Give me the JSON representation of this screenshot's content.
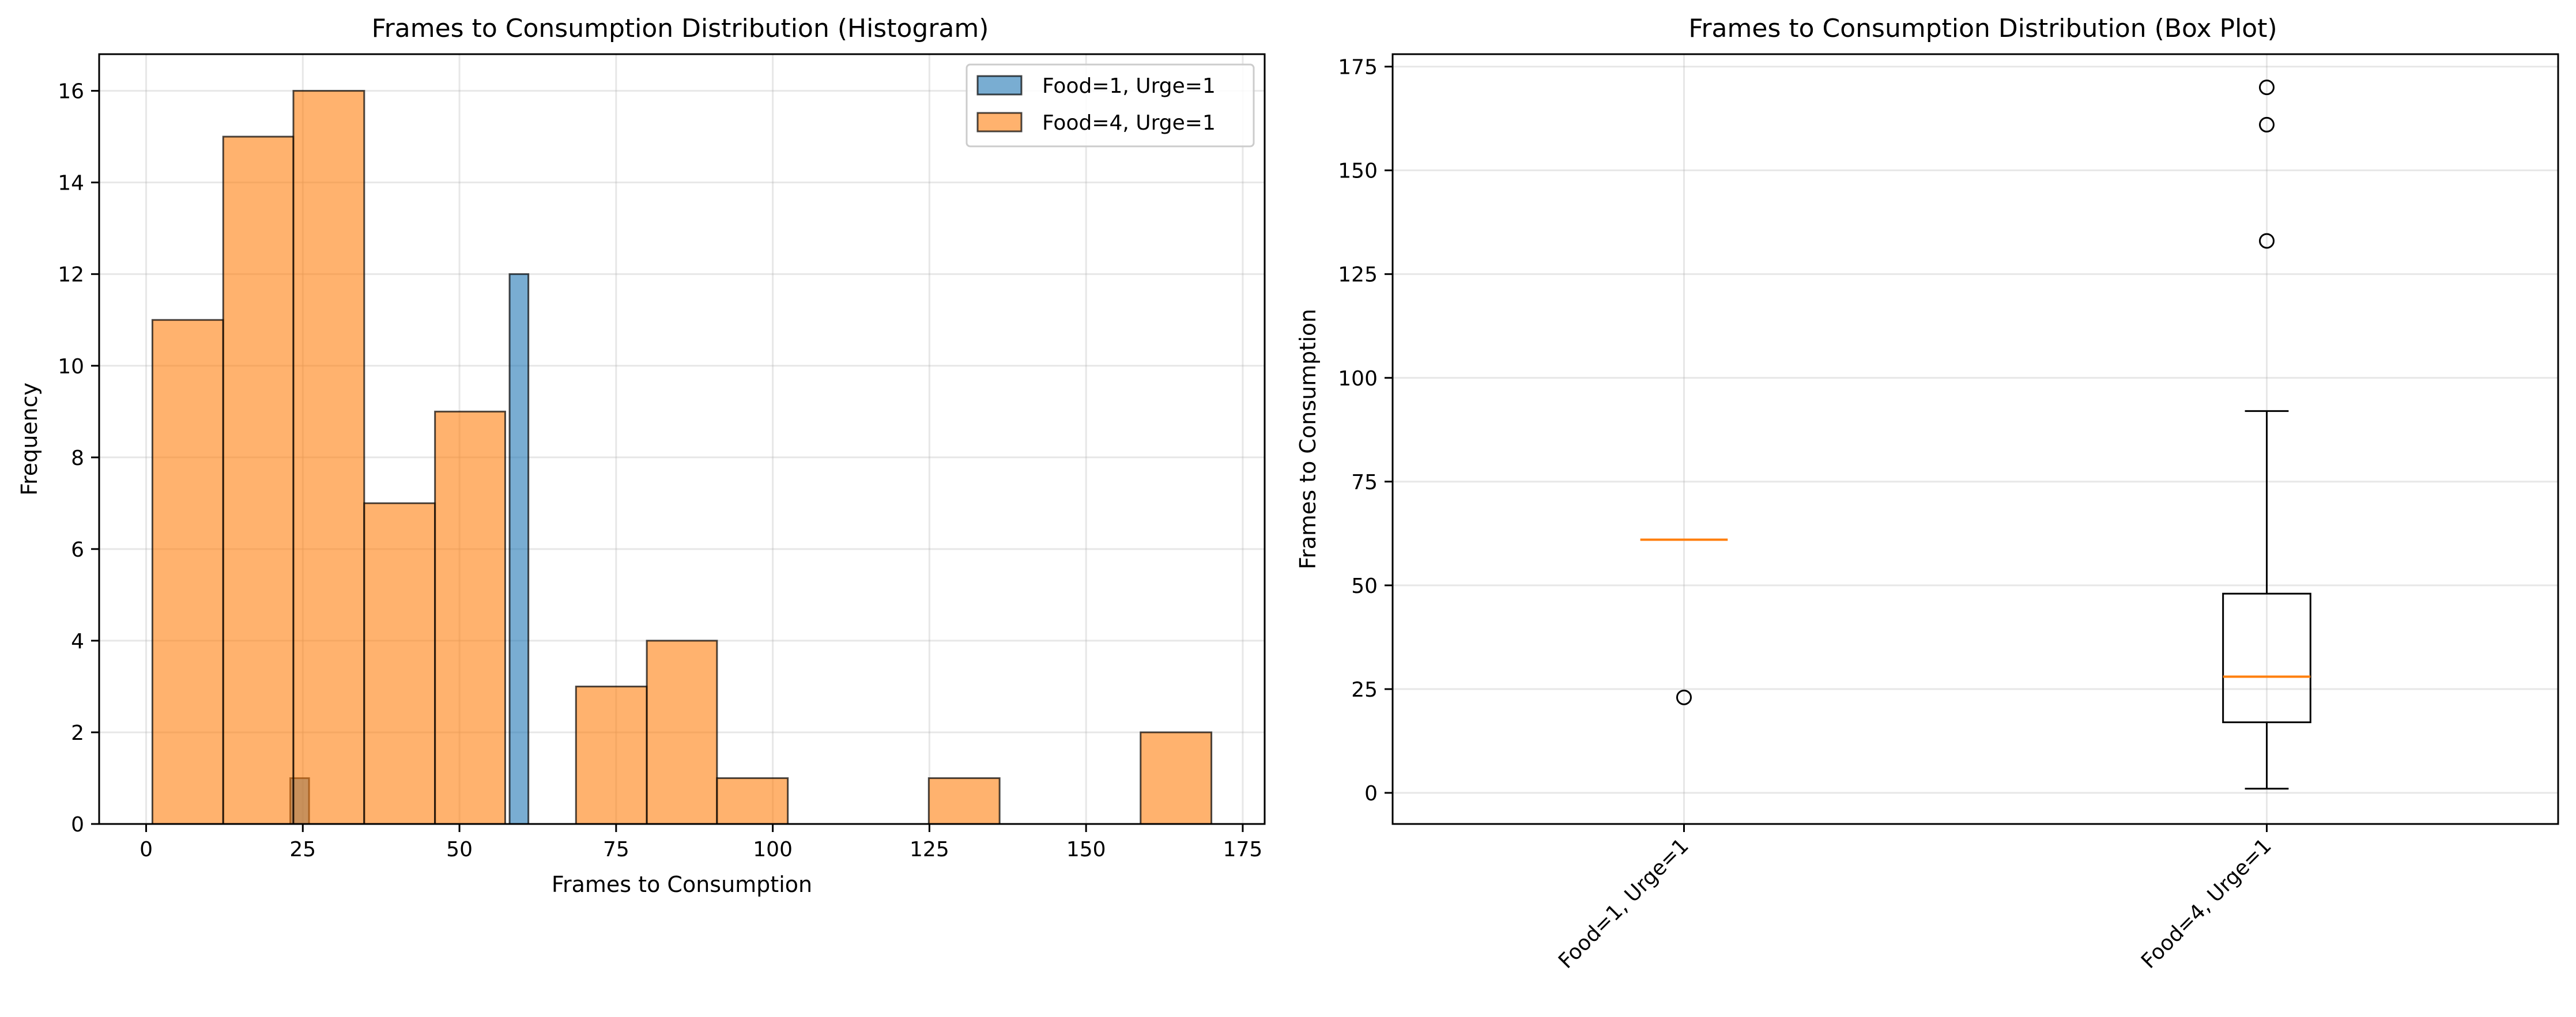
{
  "colors": {
    "series1": "#1f77b4",
    "series2": "#ff7f0e",
    "edge": "#000000",
    "median": "#ff7f0e"
  },
  "chart_data": [
    {
      "type": "bar",
      "subtype": "histogram",
      "title": "Frames to Consumption Distribution (Histogram)",
      "xlabel": "Frames to Consumption",
      "ylabel": "Frequency",
      "xlim": [
        -7.5,
        178.5
      ],
      "ylim": [
        0,
        16.8
      ],
      "xticks": [
        0,
        25,
        50,
        75,
        100,
        125,
        150,
        175
      ],
      "yticks": [
        0,
        2,
        4,
        6,
        8,
        10,
        12,
        14,
        16
      ],
      "grid": true,
      "legend": "top-right",
      "series": [
        {
          "name": "Food=1, Urge=1",
          "color": "#1f77b4",
          "bins": [
            {
              "x0": 23,
              "x1": 26,
              "count": 1
            },
            {
              "x0": 58,
              "x1": 61,
              "count": 12
            }
          ]
        },
        {
          "name": "Food=4, Urge=1",
          "color": "#ff7f0e",
          "bins": [
            {
              "x0": 1,
              "x1": 12.3,
              "count": 11
            },
            {
              "x0": 12.3,
              "x1": 23.5,
              "count": 15
            },
            {
              "x0": 23.5,
              "x1": 34.8,
              "count": 16
            },
            {
              "x0": 34.8,
              "x1": 46.1,
              "count": 7
            },
            {
              "x0": 46.1,
              "x1": 57.3,
              "count": 9
            },
            {
              "x0": 57.3,
              "x1": 68.6,
              "count": 0
            },
            {
              "x0": 68.6,
              "x1": 79.9,
              "count": 3
            },
            {
              "x0": 79.9,
              "x1": 91.1,
              "count": 4
            },
            {
              "x0": 91.1,
              "x1": 102.4,
              "count": 1
            },
            {
              "x0": 102.4,
              "x1": 113.7,
              "count": 0
            },
            {
              "x0": 113.7,
              "x1": 124.9,
              "count": 0
            },
            {
              "x0": 124.9,
              "x1": 136.2,
              "count": 1
            },
            {
              "x0": 136.2,
              "x1": 147.5,
              "count": 0
            },
            {
              "x0": 147.5,
              "x1": 158.7,
              "count": 0
            },
            {
              "x0": 158.7,
              "x1": 170,
              "count": 2
            }
          ]
        }
      ]
    },
    {
      "type": "boxplot",
      "title": "Frames to Consumption Distribution (Box Plot)",
      "xlabel": "",
      "ylabel": "Frames to Consumption",
      "ylim": [
        -7.5,
        178
      ],
      "yticks": [
        0,
        25,
        50,
        75,
        100,
        125,
        150,
        175
      ],
      "grid": true,
      "categories": [
        "Food=1, Urge=1",
        "Food=4, Urge=1"
      ],
      "boxes": [
        {
          "q1": 61,
          "median": 61,
          "q3": 61,
          "whisker_low": 61,
          "whisker_high": 61,
          "outliers": [
            23
          ]
        },
        {
          "q1": 17,
          "median": 28,
          "q3": 48,
          "whisker_low": 1,
          "whisker_high": 92,
          "outliers": [
            133,
            161,
            170
          ]
        }
      ]
    }
  ]
}
